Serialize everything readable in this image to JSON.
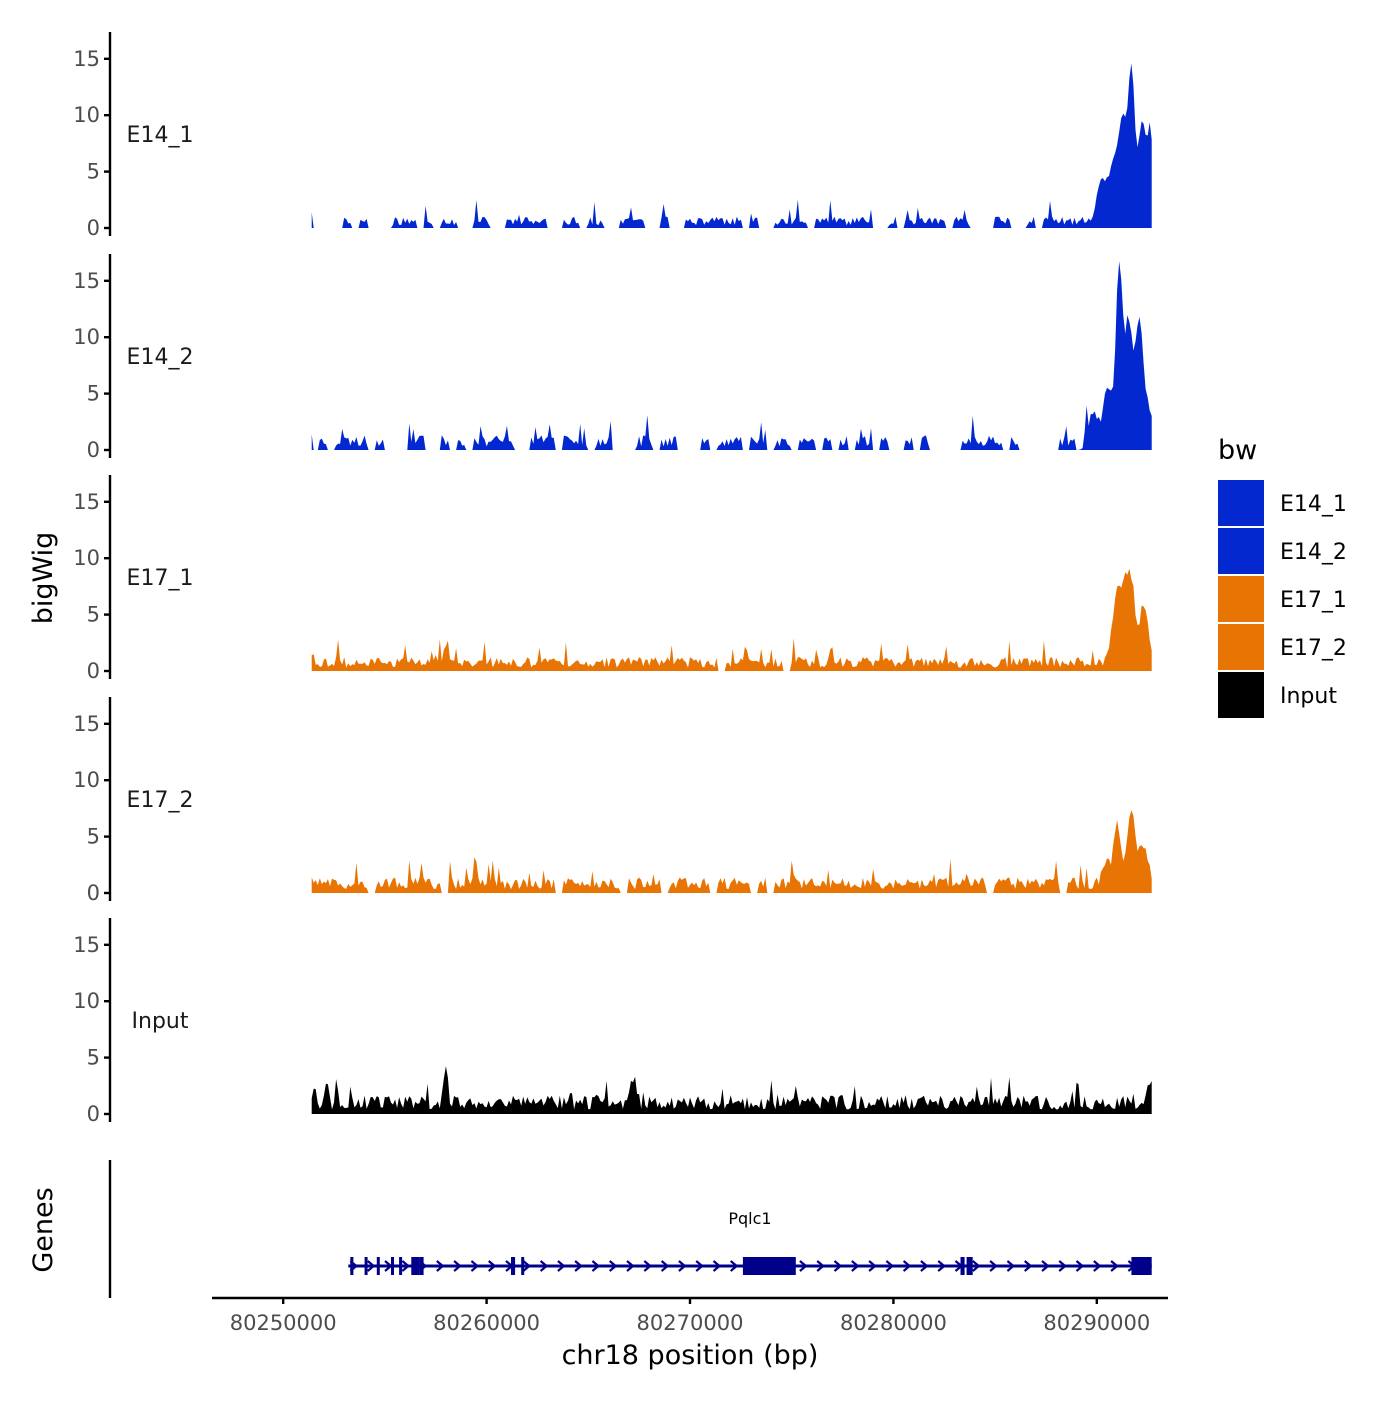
{
  "chart_data": {
    "type": "area",
    "chromosome": "chr18",
    "xlabel": "chr18 position (bp)",
    "ylabel": "bigWig",
    "genes_label": "Genes",
    "xlim": [
      80246500,
      80293500
    ],
    "ylim": [
      0,
      17
    ],
    "x_ticks": [
      80250000,
      80260000,
      80270000,
      80280000,
      80290000
    ],
    "x_tick_labels": [
      "80250000",
      "80260000",
      "80270000",
      "80280000",
      "80290000"
    ],
    "y_ticks": [
      0,
      5,
      10,
      15
    ],
    "y_tick_labels": [
      "0",
      "5",
      "10",
      "15"
    ],
    "region": [
      80251400,
      80292700
    ],
    "legend": {
      "title": "bw",
      "entries": [
        {
          "label": "E14_1",
          "color": "#0328d0"
        },
        {
          "label": "E14_2",
          "color": "#0328d0"
        },
        {
          "label": "E17_1",
          "color": "#e87404"
        },
        {
          "label": "E17_2",
          "color": "#e87404"
        },
        {
          "label": "Input",
          "color": "#000000"
        }
      ]
    },
    "series": [
      {
        "name": "E14_1",
        "color": "#0328d0",
        "peaks": [
          [
            80291300,
            9.2,
            300
          ],
          [
            80291700,
            12.5,
            200
          ],
          [
            80292200,
            8.5,
            300
          ],
          [
            80290800,
            5.5,
            350
          ],
          [
            80290200,
            3.5,
            300
          ],
          [
            80292600,
            6.0,
            200
          ]
        ],
        "background": 0.7,
        "noise_seed": 11,
        "gap_prob": 0.38
      },
      {
        "name": "E14_2",
        "color": "#0328d0",
        "peaks": [
          [
            80291100,
            15.8,
            220
          ],
          [
            80291550,
            10.5,
            250
          ],
          [
            80292100,
            11.0,
            300
          ],
          [
            80290500,
            5.5,
            300
          ],
          [
            80289800,
            2.8,
            300
          ],
          [
            80292650,
            3.0,
            200
          ]
        ],
        "background": 0.9,
        "noise_seed": 23,
        "gap_prob": 0.33
      },
      {
        "name": "E17_1",
        "color": "#e87404",
        "peaks": [
          [
            80291600,
            8.0,
            300
          ],
          [
            80290900,
            4.5,
            300
          ],
          [
            80292300,
            5.0,
            300
          ],
          [
            80291200,
            4.0,
            250
          ]
        ],
        "background": 0.85,
        "noise_seed": 37,
        "gap_prob": 0.05
      },
      {
        "name": "E17_2",
        "color": "#e87404",
        "peaks": [
          [
            80291000,
            5.5,
            220
          ],
          [
            80291700,
            6.0,
            320
          ],
          [
            80292300,
            3.0,
            250
          ],
          [
            80290500,
            2.0,
            300
          ]
        ],
        "background": 0.95,
        "noise_seed": 51,
        "gap_prob": 0.05
      },
      {
        "name": "Input",
        "color": "#000000",
        "peaks": [
          [
            80292600,
            2.0,
            200
          ],
          [
            80258000,
            2.6,
            150
          ],
          [
            80267200,
            2.2,
            200
          ]
        ],
        "background": 1.15,
        "noise_seed": 67,
        "gap_prob": 0.0
      }
    ],
    "gene": {
      "name": "Pqlc1",
      "color": "#00008b",
      "start": 80253200,
      "end": 80292700,
      "strand": "+",
      "exons": [
        [
          80253300,
          80253450
        ],
        [
          80254000,
          80254100
        ],
        [
          80254600,
          80254700
        ],
        [
          80255300,
          80255400
        ],
        [
          80255700,
          80255780
        ],
        [
          80256300,
          80256700
        ],
        [
          80256700,
          80256900
        ],
        [
          80261200,
          80261400
        ],
        [
          80261700,
          80261800
        ],
        [
          80272600,
          80275200
        ],
        [
          80283300,
          80283500
        ],
        [
          80283600,
          80283900
        ],
        [
          80291700,
          80292700
        ]
      ]
    }
  }
}
